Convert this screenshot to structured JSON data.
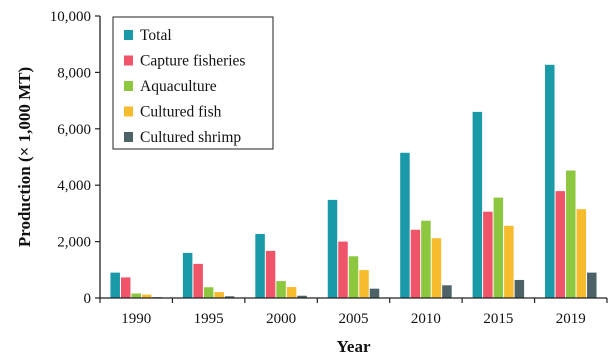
{
  "chart_data": {
    "type": "bar",
    "title": "",
    "xlabel": "Year",
    "ylabel": "Production (× 1,000 MT)",
    "ylim": [
      0,
      10000
    ],
    "yticks": [
      0,
      2000,
      4000,
      6000,
      8000,
      10000
    ],
    "ytick_labels": [
      "0",
      "2,000",
      "4,000",
      "6,000",
      "8,000",
      "10,000"
    ],
    "categories": [
      "1990",
      "1995",
      "2000",
      "2005",
      "2010",
      "2015",
      "2019"
    ],
    "grid": false,
    "legend_position": "top-left",
    "series": [
      {
        "name": "Total",
        "color": "#1a9aa8",
        "values": [
          900,
          1600,
          2270,
          3480,
          5150,
          6600,
          8270
        ]
      },
      {
        "name": "Capture fisheries",
        "color": "#ef5468",
        "values": [
          730,
          1210,
          1670,
          2000,
          2420,
          3060,
          3790
        ]
      },
      {
        "name": "Aquaculture",
        "color": "#8dc63f",
        "values": [
          160,
          380,
          600,
          1480,
          2740,
          3560,
          4520
        ]
      },
      {
        "name": "Cultured fish",
        "color": "#f7bb2e",
        "values": [
          120,
          210,
          390,
          990,
          2120,
          2560,
          3150
        ]
      },
      {
        "name": "Cultured shrimp",
        "color": "#4d6266",
        "values": [
          30,
          60,
          80,
          330,
          450,
          640,
          900
        ]
      }
    ]
  }
}
